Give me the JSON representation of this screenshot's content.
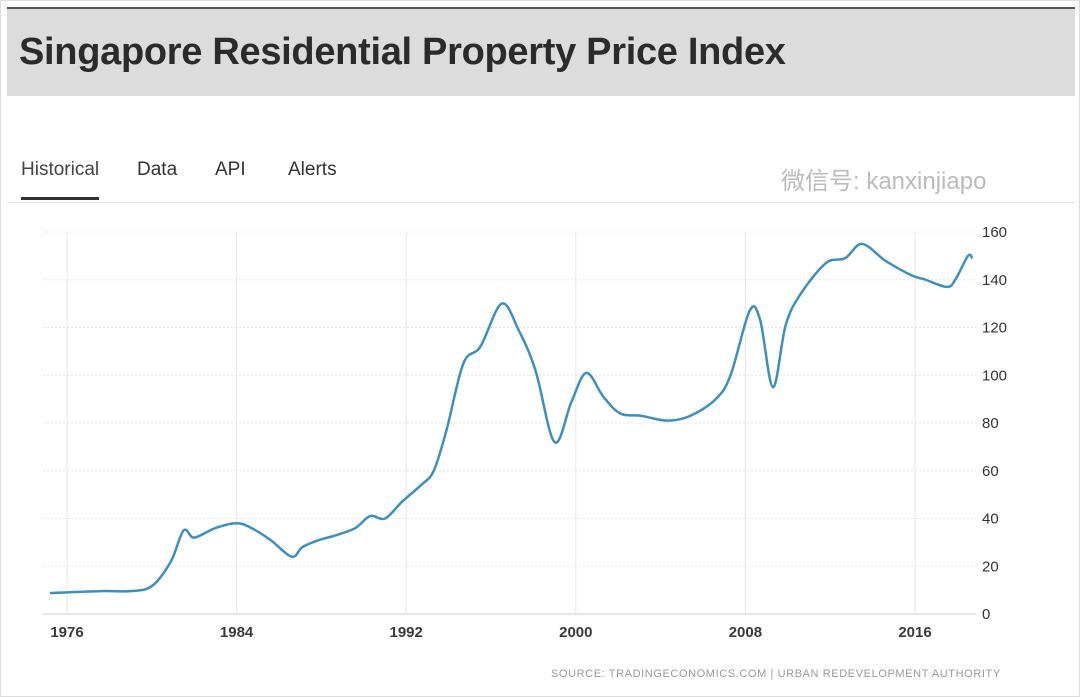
{
  "header": {
    "title": "Singapore Residential Property Price Index"
  },
  "tabs": [
    {
      "label": "Historical",
      "active": true
    },
    {
      "label": "Data"
    },
    {
      "label": "API"
    },
    {
      "label": "Alerts"
    }
  ],
  "chart_data": {
    "type": "line",
    "title": "",
    "xlabel": "",
    "ylabel": "",
    "xlim": [
      1975.2,
      2018.7
    ],
    "ylim": [
      0,
      160
    ],
    "x_ticks": [
      "1976",
      "1984",
      "1992",
      "2000",
      "2008",
      "2016"
    ],
    "y_ticks": [
      "0",
      "20",
      "40",
      "60",
      "80",
      "100",
      "120",
      "140",
      "160"
    ],
    "grid": true,
    "line_color": "#3d8fc0",
    "x": [
      1975.2,
      1977.6,
      1979,
      1980,
      1980.9,
      1981.5,
      1982,
      1983,
      1984,
      1984.7,
      1985.6,
      1986.6,
      1987.1,
      1987.9,
      1988.7,
      1989.6,
      1990.3,
      1991,
      1991.8,
      1992.7,
      1993.3,
      1993.9,
      1994.7,
      1995.5,
      1996.5,
      1997.3,
      1998.1,
      1999,
      1999.8,
      2000.5,
      2001.3,
      2002.1,
      2003.1,
      2004.3,
      2005.4,
      2006.6,
      2007.3,
      2008.2,
      2008.7,
      2009.3,
      2009.9,
      2010.6,
      2011.8,
      2012.7,
      2013.5,
      2014.6,
      2015.8,
      2016.5,
      2017.5,
      2017.9,
      2018.5,
      2018.7
    ],
    "y": [
      8.8,
      9.6,
      9.6,
      11.7,
      22,
      35,
      32,
      36,
      38,
      36,
      31,
      24,
      28,
      31,
      33,
      36,
      41,
      40,
      47,
      54,
      60,
      77,
      105,
      112,
      130,
      119,
      102,
      72,
      89,
      101,
      91,
      84,
      83,
      81,
      83,
      90,
      100,
      127,
      123,
      95,
      121,
      134,
      147,
      149,
      155,
      148,
      142,
      140,
      137,
      140,
      150,
      149
    ]
  },
  "source": "SOURCE: TRADINGECONOMICS.COM  |  URBAN REDEVELOPMENT AUTHORITY",
  "watermark": "微信号: kanxinjiapo"
}
